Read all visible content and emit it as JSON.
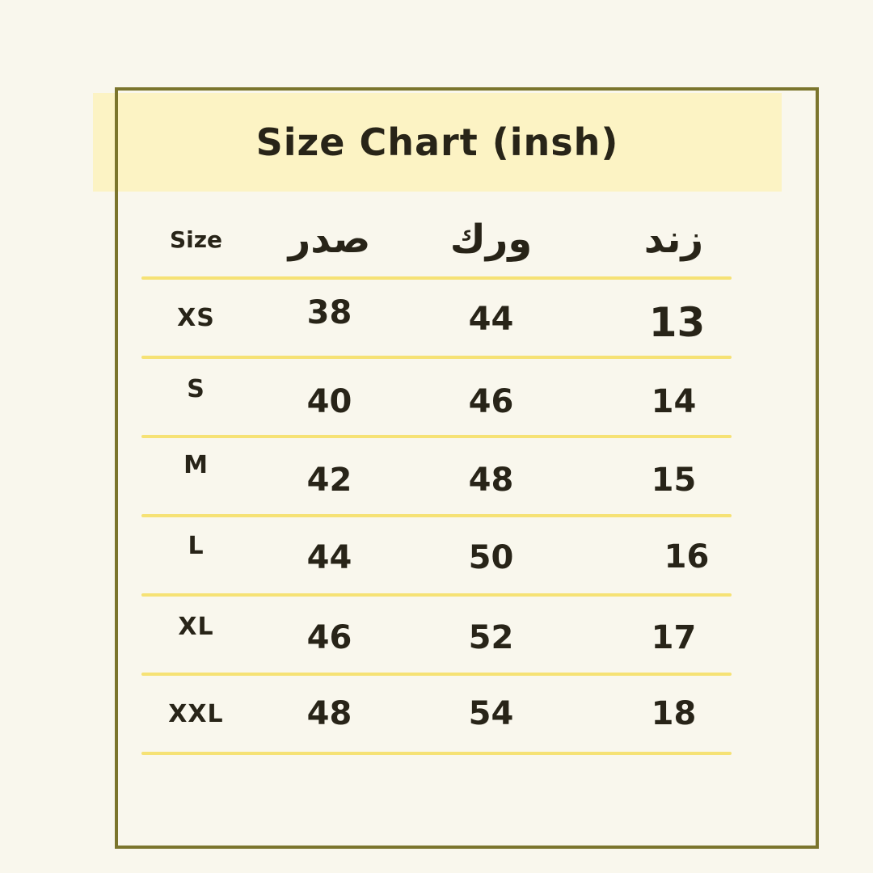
{
  "title": "Size Chart (insh)",
  "colors": {
    "background": "#f9f7ed",
    "banner": "#fcf3c4",
    "border": "#7b752d",
    "separator": "#f6e275",
    "text": "#282418"
  },
  "chart_data": {
    "type": "table",
    "title": "Size Chart (insh)",
    "unit": "insh",
    "columns": [
      "Size",
      "صدر",
      "ورك",
      "زند"
    ],
    "rows": [
      [
        "XS",
        "38",
        "44",
        "13"
      ],
      [
        "S",
        "40",
        "46",
        "14"
      ],
      [
        "M",
        "42",
        "48",
        "15"
      ],
      [
        "L",
        "44",
        "50",
        "16"
      ],
      [
        "XL",
        "46",
        "52",
        "17"
      ],
      [
        "XXL",
        "48",
        "54",
        "18"
      ]
    ]
  }
}
